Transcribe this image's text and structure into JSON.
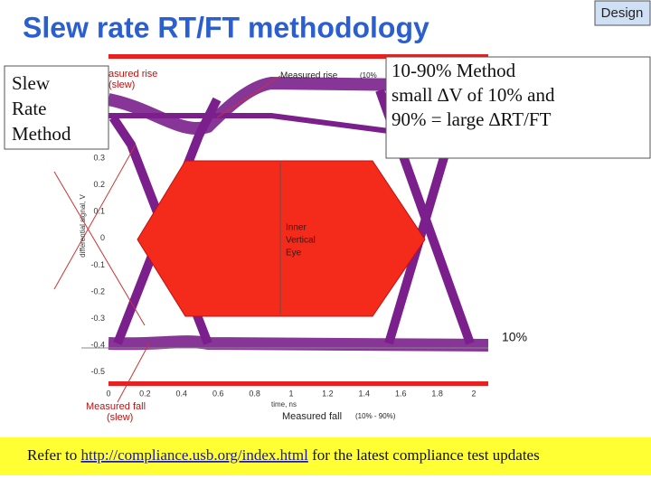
{
  "title": "Slew rate RT/FT methodology",
  "badge": "Design",
  "left_box": [
    "Slew",
    "Rate",
    "Method"
  ],
  "note_box": [
    "10-90% Method",
    "small ∆V of 10% and",
    "90% = large ∆RT/FT"
  ],
  "plot": {
    "y_axis_label": "differential signal, V",
    "x_axis_label": "time, ns",
    "yticks": [
      "0.3",
      "0.2",
      "0.1",
      "0",
      "-0.1",
      "-0.2",
      "-0.3",
      "-0.4",
      "-0.5"
    ],
    "xticks": [
      "0",
      "0.2",
      "0.4",
      "0.6",
      "0.8",
      "1",
      "1.2",
      "1.4",
      "1.6",
      "1.8",
      "2"
    ],
    "eye_label": [
      "Inner",
      "Vertical",
      "Eye"
    ],
    "measured_rise_left": [
      "asured rise",
      "(slew)"
    ],
    "measured_rise_top": "Measured rise",
    "measured_rise_top_note": "(10%",
    "measured_fall_left": [
      "Measured fall",
      "(slew)"
    ],
    "measured_fall_axis": "Measured fall",
    "measured_fall_axis_note": "(10% - 90%)",
    "level_label": "10%"
  },
  "footer": {
    "before": "Refer to ",
    "link": "http://compliance.usb.org/index.html",
    "after": " for the latest compliance test updates"
  }
}
